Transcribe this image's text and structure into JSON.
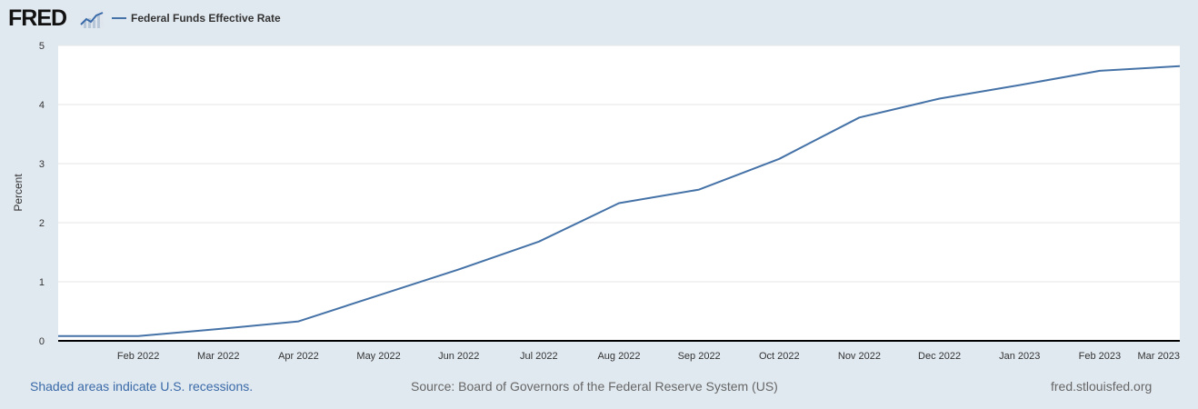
{
  "header": {
    "logo_text": "FRED",
    "logo_icon": "trend-line-icon",
    "legend_label": "Federal Funds Effective Rate"
  },
  "footer": {
    "recession_note": "Shaded areas indicate U.S. recessions.",
    "source": "Source: Board of Governors of the Federal Reserve System (US)",
    "site": "fred.stlouisfed.org"
  },
  "colors": {
    "background": "#e1e9f0",
    "plot_background": "#ffffff",
    "series": "#4572a7",
    "gridline": "#e6e6e6",
    "axis": "#000000",
    "link": "#3a6aa8"
  },
  "chart_data": {
    "type": "line",
    "title": "",
    "xlabel": "",
    "ylabel": "Percent",
    "ylim": [
      0,
      5
    ],
    "yticks": [
      "0",
      "1",
      "2",
      "3",
      "4",
      "5"
    ],
    "grid": true,
    "legend_position": "top-left",
    "x_ticks": [
      "Feb 2022",
      "Mar 2022",
      "Apr 2022",
      "May 2022",
      "Jun 2022",
      "Jul 2022",
      "Aug 2022",
      "Sep 2022",
      "Oct 2022",
      "Nov 2022",
      "Dec 2022",
      "Jan 2023",
      "Feb 2023",
      "Mar 2023"
    ],
    "series": [
      {
        "name": "Federal Funds Effective Rate",
        "x": [
          "2022-01",
          "2022-02",
          "2022-03",
          "2022-04",
          "2022-05",
          "2022-06",
          "2022-07",
          "2022-08",
          "2022-09",
          "2022-10",
          "2022-11",
          "2022-12",
          "2023-01",
          "2023-02",
          "2023-03"
        ],
        "values": [
          0.08,
          0.08,
          0.2,
          0.33,
          0.77,
          1.21,
          1.68,
          2.33,
          2.56,
          3.08,
          3.78,
          4.1,
          4.33,
          4.57,
          4.65
        ]
      }
    ]
  }
}
